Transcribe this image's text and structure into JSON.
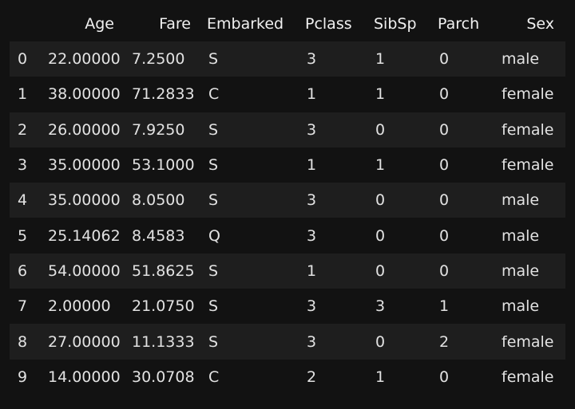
{
  "table": {
    "columns": [
      "Age",
      "Fare",
      "Embarked",
      "Pclass",
      "SibSp",
      "Parch",
      "Sex"
    ],
    "rows": [
      {
        "index": "0",
        "Age": "22.00000",
        "Fare": "7.2500",
        "Embarked": "S",
        "Pclass": "3",
        "SibSp": "1",
        "Parch": "0",
        "Sex": "male"
      },
      {
        "index": "1",
        "Age": "38.00000",
        "Fare": "71.2833",
        "Embarked": "C",
        "Pclass": "1",
        "SibSp": "1",
        "Parch": "0",
        "Sex": "female"
      },
      {
        "index": "2",
        "Age": "26.00000",
        "Fare": "7.9250",
        "Embarked": "S",
        "Pclass": "3",
        "SibSp": "0",
        "Parch": "0",
        "Sex": "female"
      },
      {
        "index": "3",
        "Age": "35.00000",
        "Fare": "53.1000",
        "Embarked": "S",
        "Pclass": "1",
        "SibSp": "1",
        "Parch": "0",
        "Sex": "female"
      },
      {
        "index": "4",
        "Age": "35.00000",
        "Fare": "8.0500",
        "Embarked": "S",
        "Pclass": "3",
        "SibSp": "0",
        "Parch": "0",
        "Sex": "male"
      },
      {
        "index": "5",
        "Age": "25.14062",
        "Fare": "8.4583",
        "Embarked": "Q",
        "Pclass": "3",
        "SibSp": "0",
        "Parch": "0",
        "Sex": "male"
      },
      {
        "index": "6",
        "Age": "54.00000",
        "Fare": "51.8625",
        "Embarked": "S",
        "Pclass": "1",
        "SibSp": "0",
        "Parch": "0",
        "Sex": "male"
      },
      {
        "index": "7",
        "Age": "2.00000",
        "Fare": "21.0750",
        "Embarked": "S",
        "Pclass": "3",
        "SibSp": "3",
        "Parch": "1",
        "Sex": "male"
      },
      {
        "index": "8",
        "Age": "27.00000",
        "Fare": "11.1333",
        "Embarked": "S",
        "Pclass": "3",
        "SibSp": "0",
        "Parch": "2",
        "Sex": "female"
      },
      {
        "index": "9",
        "Age": "14.00000",
        "Fare": "30.0708",
        "Embarked": "C",
        "Pclass": "2",
        "SibSp": "1",
        "Parch": "0",
        "Sex": "female"
      }
    ]
  },
  "colors": {
    "background": "#121212",
    "row_stripe": "#1e1e1e",
    "text": "#e6e6e6"
  }
}
